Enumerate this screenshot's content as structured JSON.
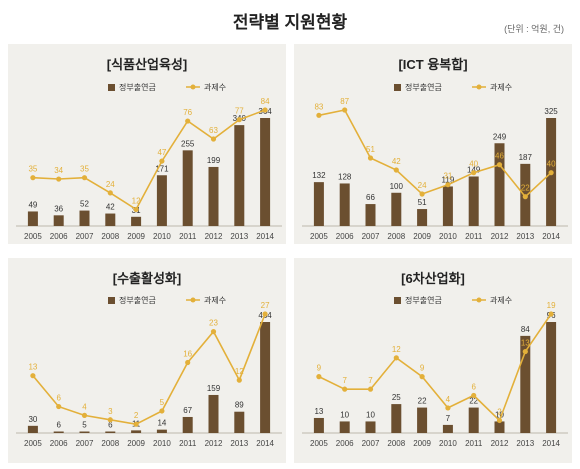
{
  "title": "전략별 지원현황",
  "unit_note": "(단위 : 억원, 건)",
  "colors": {
    "bar": "#6b4f30",
    "line": "#e3b03a",
    "panel": "#f1f0ec"
  },
  "chart_data": [
    {
      "type": "bar",
      "title": "[식품산업육성]",
      "categories": [
        "2005",
        "2006",
        "2007",
        "2008",
        "2009",
        "2010",
        "2011",
        "2012",
        "2013",
        "2014"
      ],
      "series": [
        {
          "name": "정부출연금",
          "type": "bar",
          "values": [
            49,
            36,
            52,
            42,
            31,
            171,
            255,
            199,
            340,
            364
          ]
        },
        {
          "name": "과제수",
          "type": "line",
          "values": [
            35,
            34,
            35,
            24,
            12,
            47,
            76,
            63,
            77,
            84
          ]
        }
      ],
      "legend_position": "top-right"
    },
    {
      "type": "bar",
      "title": "[ICT 융복합]",
      "categories": [
        "2005",
        "2006",
        "2007",
        "2008",
        "2009",
        "2010",
        "2011",
        "2012",
        "2013",
        "2014"
      ],
      "series": [
        {
          "name": "정부출연금",
          "type": "bar",
          "values": [
            132,
            128,
            66,
            100,
            51,
            119,
            149,
            249,
            187,
            325
          ]
        },
        {
          "name": "과제수",
          "type": "line",
          "values": [
            83,
            87,
            51,
            42,
            24,
            31,
            40,
            46,
            22,
            40
          ]
        }
      ],
      "legend_position": "top-right"
    },
    {
      "type": "bar",
      "title": "[수출활성화]",
      "categories": [
        "2005",
        "2006",
        "2007",
        "2008",
        "2009",
        "2010",
        "2011",
        "2012",
        "2013",
        "2014"
      ],
      "series": [
        {
          "name": "정부출연금",
          "type": "bar",
          "values": [
            30,
            6,
            5,
            6,
            11,
            14,
            67,
            159,
            89,
            464
          ]
        },
        {
          "name": "과제수",
          "type": "line",
          "values": [
            13,
            6,
            4,
            3,
            2,
            5,
            16,
            23,
            12,
            27
          ]
        }
      ],
      "legend_position": "top-right"
    },
    {
      "type": "bar",
      "title": "[6차산업화]",
      "categories": [
        "2005",
        "2006",
        "2007",
        "2008",
        "2009",
        "2010",
        "2011",
        "2012",
        "2013",
        "2014"
      ],
      "series": [
        {
          "name": "정부출연금",
          "type": "bar",
          "values": [
            13,
            10,
            10,
            25,
            22,
            7,
            22,
            10,
            84,
            96
          ]
        },
        {
          "name": "과제수",
          "type": "line",
          "values": [
            9,
            7,
            7,
            12,
            9,
            4,
            6,
            2,
            13,
            19
          ]
        }
      ],
      "legend_position": "top-right"
    }
  ]
}
